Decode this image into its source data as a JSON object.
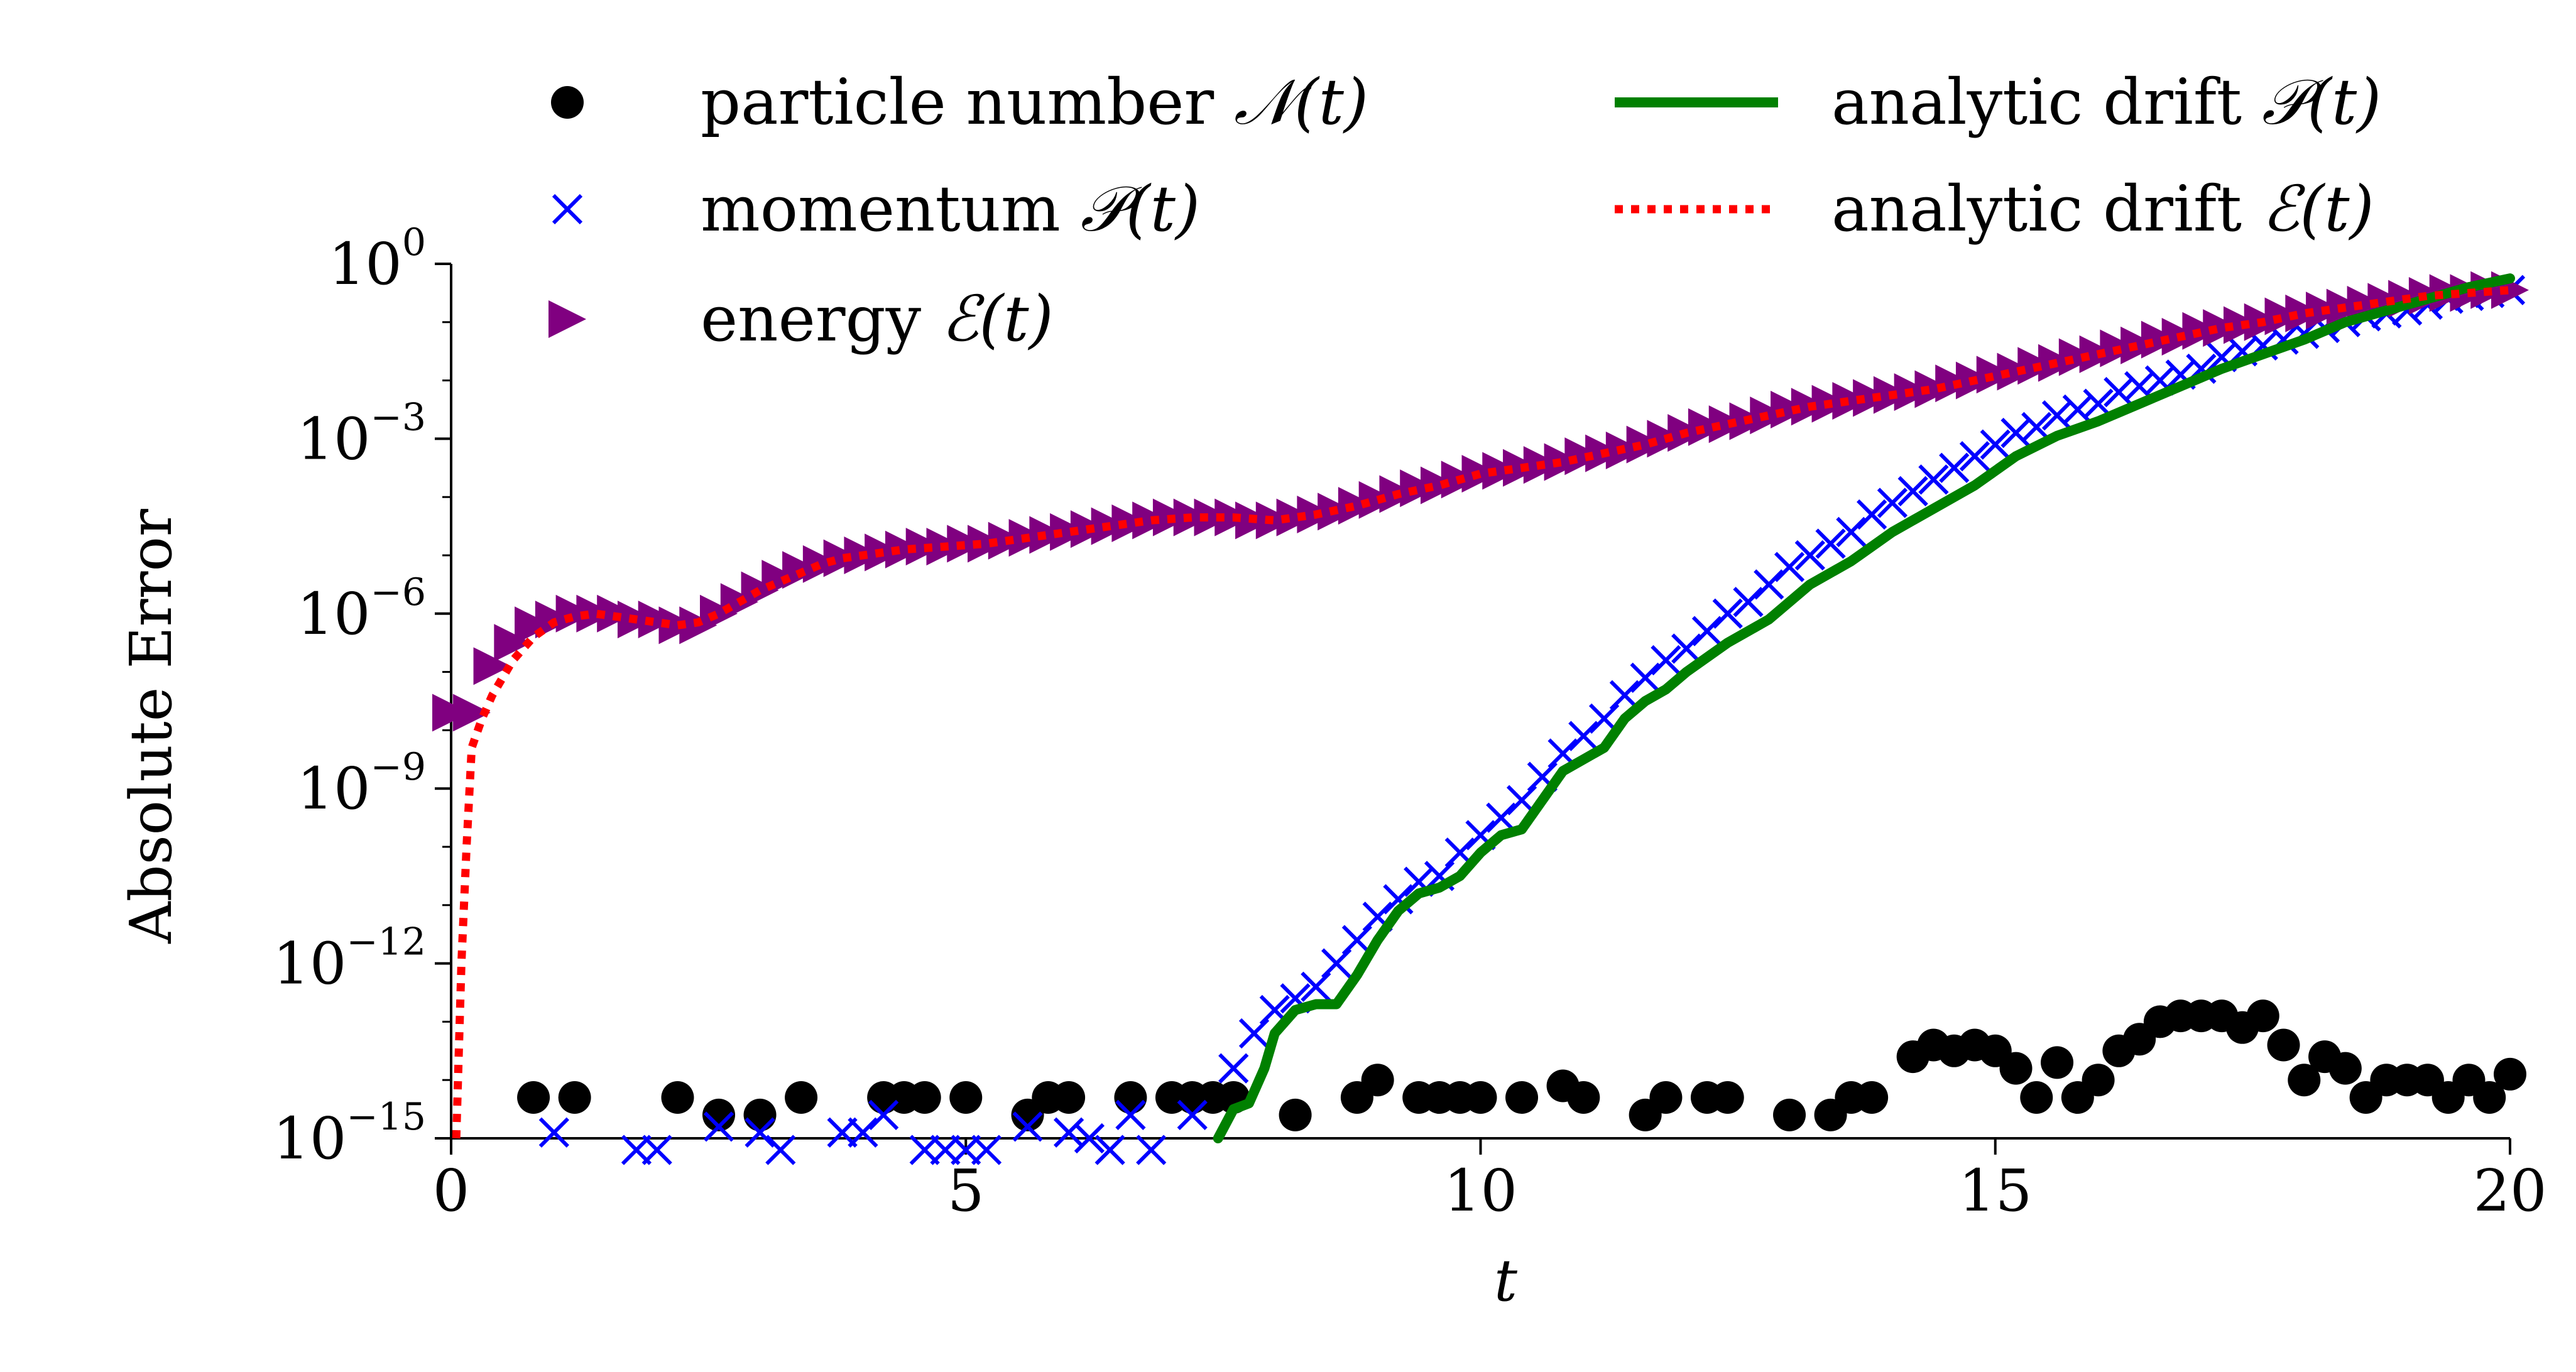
{
  "chart_data": {
    "type": "scatter",
    "title": "",
    "xlabel": "t",
    "ylabel": "Absolute Error",
    "xlim": [
      0,
      20
    ],
    "ylim_log10": [
      -15,
      0
    ],
    "yscale": "log",
    "grid": false,
    "legend_placement": "top",
    "x_ticks": [
      {
        "value": 0,
        "label": "0"
      },
      {
        "value": 5,
        "label": "5"
      },
      {
        "value": 10,
        "label": "10"
      },
      {
        "value": 15,
        "label": "15"
      },
      {
        "value": 20,
        "label": "20"
      }
    ],
    "y_ticks": [
      {
        "exp": 0,
        "base": "10",
        "sup": "0"
      },
      {
        "exp": -3,
        "base": "10",
        "sup": "−3"
      },
      {
        "exp": -6,
        "base": "10",
        "sup": "−6"
      },
      {
        "exp": -9,
        "base": "10",
        "sup": "−9"
      },
      {
        "exp": -12,
        "base": "10",
        "sup": "−12"
      },
      {
        "exp": -15,
        "base": "10",
        "sup": "−15"
      }
    ],
    "colors": {
      "particle": "#000000",
      "momentum": "#0000ff",
      "energy": "#800080",
      "drift_p": "#008000",
      "drift_e": "#ff0000"
    },
    "legend": [
      {
        "key": "particle",
        "text": "particle number ",
        "math": "𝒩(t)",
        "marker": "circle"
      },
      {
        "key": "momentum",
        "text": "momentum ",
        "math": "𝒫(t)",
        "marker": "x"
      },
      {
        "key": "energy",
        "text": "energy ",
        "math": "ℰ(t)",
        "marker": "triangle"
      },
      {
        "key": "drift_p",
        "text": "analytic drift ",
        "math": "𝒫(t)",
        "marker": "line"
      },
      {
        "key": "drift_e",
        "text": "analytic drift ",
        "math": "ℰ(t)",
        "marker": "dotted"
      }
    ],
    "series": [
      {
        "name": "particle number N(t)",
        "key": "particle",
        "x": [
          0.8,
          1.2,
          2.2,
          2.6,
          3.0,
          3.4,
          4.2,
          4.4,
          4.6,
          5.0,
          5.6,
          5.8,
          6.0,
          6.6,
          7.0,
          7.2,
          7.4,
          7.6,
          8.2,
          8.8,
          9.0,
          9.4,
          9.6,
          9.8,
          10.0,
          10.4,
          10.8,
          11.0,
          11.6,
          11.8,
          12.2,
          12.4,
          13.0,
          13.4,
          13.6,
          13.8,
          14.2,
          14.4,
          14.6,
          14.8,
          15.0,
          15.2,
          15.4,
          15.6,
          15.8,
          16.0,
          16.2,
          16.4,
          16.6,
          16.8,
          17.0,
          17.2,
          17.4,
          17.6,
          17.8,
          18.0,
          18.2,
          18.4,
          18.6,
          18.8,
          19.0,
          19.2,
          19.4,
          19.6,
          19.8,
          20.0
        ],
        "log10_y": [
          -14.3,
          -14.3,
          -14.3,
          -14.6,
          -14.6,
          -14.3,
          -14.3,
          -14.3,
          -14.3,
          -14.3,
          -14.6,
          -14.3,
          -14.3,
          -14.3,
          -14.3,
          -14.3,
          -14.3,
          -14.3,
          -14.6,
          -14.3,
          -14.0,
          -14.3,
          -14.3,
          -14.3,
          -14.3,
          -14.3,
          -14.1,
          -14.3,
          -14.6,
          -14.3,
          -14.3,
          -14.3,
          -14.6,
          -14.6,
          -14.3,
          -14.3,
          -13.6,
          -13.4,
          -13.5,
          -13.4,
          -13.5,
          -13.8,
          -14.3,
          -13.7,
          -14.3,
          -14.0,
          -13.5,
          -13.3,
          -13.0,
          -12.9,
          -12.9,
          -12.9,
          -13.1,
          -12.9,
          -13.4,
          -14.0,
          -13.6,
          -13.8,
          -14.3,
          -14.0,
          -14.0,
          -14.0,
          -14.3,
          -14.0,
          -14.3,
          -13.9
        ]
      },
      {
        "name": "momentum P(t)",
        "key": "momentum",
        "x": [
          1.0,
          1.8,
          2.0,
          2.6,
          3.0,
          3.2,
          3.8,
          4.0,
          4.2,
          4.6,
          4.8,
          5.0,
          5.2,
          5.6,
          6.0,
          6.2,
          6.4,
          6.6,
          6.8,
          7.2,
          7.6,
          7.8,
          8.0,
          8.2,
          8.4,
          8.6,
          8.8,
          9.0,
          9.2,
          9.4,
          9.6,
          9.8,
          10.0,
          10.2,
          10.4,
          10.6,
          10.8,
          11.0,
          11.2,
          11.4,
          11.6,
          11.8,
          12.0,
          12.2,
          12.4,
          12.6,
          12.8,
          13.0,
          13.2,
          13.4,
          13.6,
          13.8,
          14.0,
          14.2,
          14.4,
          14.6,
          14.8,
          15.0,
          15.2,
          15.4,
          15.6,
          15.8,
          16.0,
          16.2,
          16.4,
          16.6,
          16.8,
          17.0,
          17.2,
          17.4,
          17.6,
          17.8,
          18.0,
          18.2,
          18.4,
          18.6,
          18.8,
          19.0,
          19.2,
          19.4,
          19.6,
          19.8,
          20.0
        ],
        "log10_y": [
          -14.9,
          -15.2,
          -15.2,
          -14.8,
          -14.9,
          -15.2,
          -14.9,
          -14.9,
          -14.6,
          -15.2,
          -15.2,
          -15.2,
          -15.2,
          -14.8,
          -14.9,
          -15.0,
          -15.2,
          -14.6,
          -15.2,
          -14.6,
          -13.8,
          -13.2,
          -12.8,
          -12.6,
          -12.4,
          -12.0,
          -11.6,
          -11.2,
          -10.9,
          -10.6,
          -10.5,
          -10.1,
          -9.8,
          -9.5,
          -9.2,
          -8.8,
          -8.4,
          -8.1,
          -7.8,
          -7.4,
          -7.1,
          -6.8,
          -6.6,
          -6.3,
          -6.0,
          -5.8,
          -5.5,
          -5.2,
          -5.0,
          -4.8,
          -4.6,
          -4.3,
          -4.1,
          -3.9,
          -3.7,
          -3.5,
          -3.3,
          -3.1,
          -2.9,
          -2.8,
          -2.6,
          -2.5,
          -2.4,
          -2.2,
          -2.1,
          -2.0,
          -1.9,
          -1.8,
          -1.6,
          -1.5,
          -1.4,
          -1.3,
          -1.2,
          -1.1,
          -1.0,
          -0.9,
          -0.85,
          -0.8,
          -0.7,
          -0.6,
          -0.55,
          -0.5,
          -0.45
        ]
      },
      {
        "name": "energy E(t)",
        "key": "energy",
        "x": [
          0.0,
          0.2,
          0.4,
          0.6,
          0.8,
          1.0,
          1.2,
          1.4,
          1.6,
          1.8,
          2.0,
          2.2,
          2.4,
          2.6,
          2.8,
          3.0,
          3.2,
          3.4,
          3.6,
          3.8,
          4.0,
          4.2,
          4.4,
          4.6,
          4.8,
          5.0,
          5.2,
          5.4,
          5.6,
          5.8,
          6.0,
          6.2,
          6.4,
          6.6,
          6.8,
          7.0,
          7.2,
          7.4,
          7.6,
          7.8,
          8.0,
          8.2,
          8.4,
          8.6,
          8.8,
          9.0,
          9.2,
          9.4,
          9.6,
          9.8,
          10.0,
          10.2,
          10.4,
          10.6,
          10.8,
          11.0,
          11.2,
          11.4,
          11.6,
          11.8,
          12.0,
          12.2,
          12.4,
          12.6,
          12.8,
          13.0,
          13.2,
          13.4,
          13.6,
          13.8,
          14.0,
          14.2,
          14.4,
          14.6,
          14.8,
          15.0,
          15.2,
          15.4,
          15.6,
          15.8,
          16.0,
          16.2,
          16.4,
          16.6,
          16.8,
          17.0,
          17.2,
          17.4,
          17.6,
          17.8,
          18.0,
          18.2,
          18.4,
          18.6,
          18.8,
          19.0,
          19.2,
          19.4,
          19.6,
          19.8,
          20.0
        ],
        "log10_y": [
          -7.7,
          -7.7,
          -6.9,
          -6.5,
          -6.2,
          -6.1,
          -6.0,
          -6.0,
          -6.0,
          -6.1,
          -6.1,
          -6.2,
          -6.2,
          -6.0,
          -5.8,
          -5.6,
          -5.4,
          -5.25,
          -5.15,
          -5.05,
          -5.0,
          -4.95,
          -4.9,
          -4.85,
          -4.85,
          -4.8,
          -4.8,
          -4.75,
          -4.7,
          -4.65,
          -4.6,
          -4.55,
          -4.5,
          -4.45,
          -4.4,
          -4.35,
          -4.35,
          -4.35,
          -4.35,
          -4.4,
          -4.4,
          -4.35,
          -4.3,
          -4.25,
          -4.15,
          -4.05,
          -3.95,
          -3.85,
          -3.8,
          -3.7,
          -3.6,
          -3.55,
          -3.5,
          -3.45,
          -3.4,
          -3.3,
          -3.25,
          -3.2,
          -3.1,
          -3.0,
          -2.9,
          -2.8,
          -2.75,
          -2.7,
          -2.6,
          -2.5,
          -2.45,
          -2.4,
          -2.35,
          -2.3,
          -2.25,
          -2.2,
          -2.15,
          -2.05,
          -2.0,
          -1.9,
          -1.85,
          -1.75,
          -1.7,
          -1.6,
          -1.55,
          -1.45,
          -1.4,
          -1.3,
          -1.25,
          -1.15,
          -1.1,
          -1.05,
          -1.0,
          -0.9,
          -0.85,
          -0.8,
          -0.75,
          -0.7,
          -0.65,
          -0.6,
          -0.55,
          -0.5,
          -0.5,
          -0.45,
          -0.45
        ]
      },
      {
        "name": "analytic drift P(t)",
        "key": "drift_p",
        "style": "line",
        "x": [
          7.45,
          7.6,
          7.75,
          7.9,
          8.0,
          8.2,
          8.4,
          8.6,
          8.8,
          9.0,
          9.2,
          9.4,
          9.6,
          9.8,
          10.0,
          10.2,
          10.4,
          10.6,
          10.8,
          11.0,
          11.2,
          11.4,
          11.6,
          11.8,
          12.0,
          12.4,
          12.8,
          13.2,
          13.6,
          14.0,
          14.4,
          14.8,
          15.2,
          15.6,
          16.0,
          16.4,
          16.8,
          17.2,
          17.6,
          18.0,
          18.4,
          18.8,
          19.2,
          19.6,
          20.0
        ],
        "log10_y": [
          -15.0,
          -14.5,
          -14.4,
          -13.8,
          -13.2,
          -12.8,
          -12.7,
          -12.7,
          -12.2,
          -11.6,
          -11.1,
          -10.8,
          -10.7,
          -10.5,
          -10.1,
          -9.8,
          -9.7,
          -9.2,
          -8.7,
          -8.5,
          -8.3,
          -7.8,
          -7.5,
          -7.3,
          -7.0,
          -6.5,
          -6.1,
          -5.5,
          -5.1,
          -4.6,
          -4.2,
          -3.8,
          -3.3,
          -2.95,
          -2.7,
          -2.4,
          -2.1,
          -1.8,
          -1.55,
          -1.3,
          -1.0,
          -0.8,
          -0.6,
          -0.4,
          -0.25
        ]
      },
      {
        "name": "analytic drift E(t)",
        "key": "drift_e",
        "style": "dotted",
        "x": [
          0.05,
          0.1,
          0.15,
          0.2,
          0.3,
          0.4,
          0.6,
          0.8,
          1.0,
          1.2,
          1.4,
          1.6,
          1.8,
          2.0,
          2.2,
          2.4,
          2.6,
          2.8,
          3.0,
          3.2,
          3.4,
          3.6,
          3.8,
          4.0,
          4.4,
          4.8,
          5.2,
          5.6,
          6.0,
          6.4,
          6.8,
          7.2,
          7.6,
          8.0,
          8.4,
          8.8,
          9.2,
          9.6,
          10.0,
          10.4,
          10.8,
          11.2,
          11.6,
          12.0,
          12.4,
          12.8,
          13.2,
          13.6,
          14.0,
          14.4,
          14.8,
          15.2,
          15.6,
          16.0,
          16.4,
          16.8,
          17.2,
          17.6,
          18.0,
          18.4,
          18.8,
          19.2,
          19.6,
          20.0
        ],
        "log10_y": [
          -15.0,
          -12.0,
          -10.0,
          -8.3,
          -7.8,
          -7.4,
          -6.8,
          -6.4,
          -6.15,
          -6.05,
          -6.0,
          -6.05,
          -6.1,
          -6.15,
          -6.2,
          -6.15,
          -6.0,
          -5.8,
          -5.6,
          -5.45,
          -5.3,
          -5.15,
          -5.05,
          -5.0,
          -4.9,
          -4.85,
          -4.8,
          -4.7,
          -4.6,
          -4.5,
          -4.4,
          -4.35,
          -4.35,
          -4.4,
          -4.3,
          -4.15,
          -3.95,
          -3.8,
          -3.6,
          -3.5,
          -3.4,
          -3.25,
          -3.1,
          -2.9,
          -2.75,
          -2.6,
          -2.45,
          -2.35,
          -2.25,
          -2.15,
          -2.0,
          -1.85,
          -1.7,
          -1.55,
          -1.4,
          -1.25,
          -1.1,
          -1.0,
          -0.85,
          -0.75,
          -0.65,
          -0.55,
          -0.5,
          -0.45
        ]
      }
    ]
  }
}
